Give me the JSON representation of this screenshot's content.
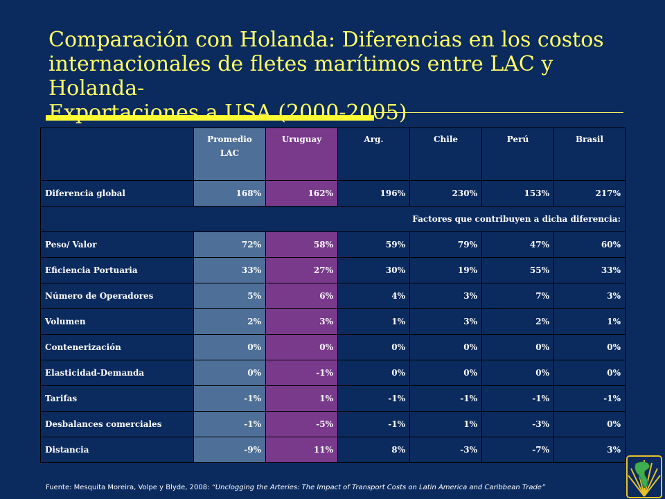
{
  "title_lines": [
    "Comparación con Holanda: Diferencias en los costos",
    "internacionales de fletes marítimos entre LAC y Holanda-",
    "Exportaciones a USA (2000-2005)"
  ],
  "colors": {
    "background": "#0b2a5e",
    "title": "#ffff66",
    "lac_column": "#4e6f97",
    "uruguay_column": "#7a3a8c"
  },
  "table": {
    "headers": [
      "",
      "Promedio LAC",
      "Uruguay",
      "Arg.",
      "Chile",
      "Perú",
      "Brasil"
    ],
    "header_lac_line1": "Promedio",
    "header_lac_line2": "LAC",
    "rows": [
      {
        "label": "Diferencia global",
        "values": [
          "168%",
          "162%",
          "196%",
          "230%",
          "153%",
          "217%"
        ]
      }
    ],
    "factors_label": "Factores que contribuyen a dicha diferencia:",
    "factor_rows": [
      {
        "label": "Peso/ Valor",
        "values": [
          "72%",
          "58%",
          "59%",
          "79%",
          "47%",
          "60%"
        ]
      },
      {
        "label": "Eficiencia Portuaria",
        "values": [
          "33%",
          "27%",
          "30%",
          "19%",
          "55%",
          "33%"
        ]
      },
      {
        "label": "Número de Operadores",
        "values": [
          "5%",
          "6%",
          "4%",
          "3%",
          "7%",
          "3%"
        ]
      },
      {
        "label": "Volumen",
        "values": [
          "2%",
          "3%",
          "1%",
          "3%",
          "2%",
          "1%"
        ]
      },
      {
        "label": "Contenerización",
        "values": [
          "0%",
          "0%",
          "0%",
          "0%",
          "0%",
          "0%"
        ]
      },
      {
        "label": "Elasticidad-Demanda",
        "values": [
          "0%",
          "-1%",
          "0%",
          "0%",
          "0%",
          "0%"
        ]
      },
      {
        "label": "Tarifas",
        "values": [
          "-1%",
          "1%",
          "-1%",
          "-1%",
          "-1%",
          "-1%"
        ]
      },
      {
        "label": "Desbalances comerciales",
        "values": [
          "-1%",
          "-5%",
          "-1%",
          "1%",
          "-3%",
          "0%"
        ]
      },
      {
        "label": "Distancia",
        "values": [
          "-9%",
          "11%",
          "8%",
          "-3%",
          "-7%",
          "3%"
        ]
      }
    ]
  },
  "source": {
    "prefix": "Fuente: Mesquita Moreira, Volpe y Blyde, 2008: ",
    "work": "“Unclogging the Arteries: The Impact of Transport Costs on Latin America and Caribbean Trade”"
  },
  "logo_icon": "americas-globe-logo-icon"
}
